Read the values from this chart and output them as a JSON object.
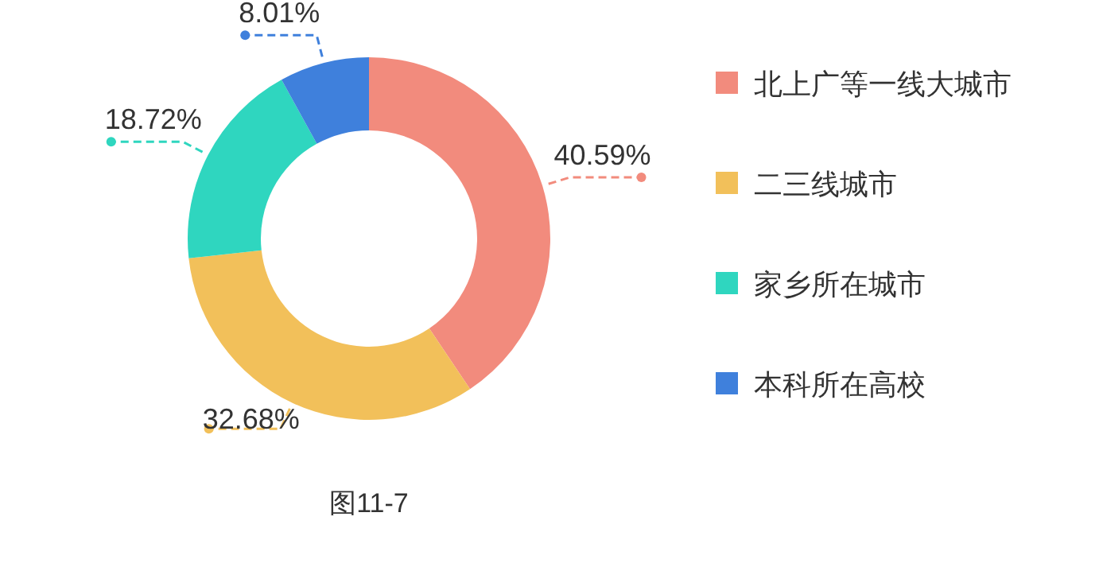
{
  "chart_data": {
    "type": "donut",
    "categories": [
      "北上广等一线大城市",
      "二三线城市",
      "家乡所在城市",
      "本科所在高校"
    ],
    "values": [
      40.59,
      32.68,
      18.72,
      8.01
    ],
    "value_labels": [
      "40.59%",
      "32.68%",
      "18.72%",
      "8.01%"
    ],
    "colors": [
      "#f28b7d",
      "#f2c05a",
      "#2fd6bf",
      "#3f80dc"
    ],
    "legend": "right",
    "annotations": [
      "图11-7"
    ]
  }
}
